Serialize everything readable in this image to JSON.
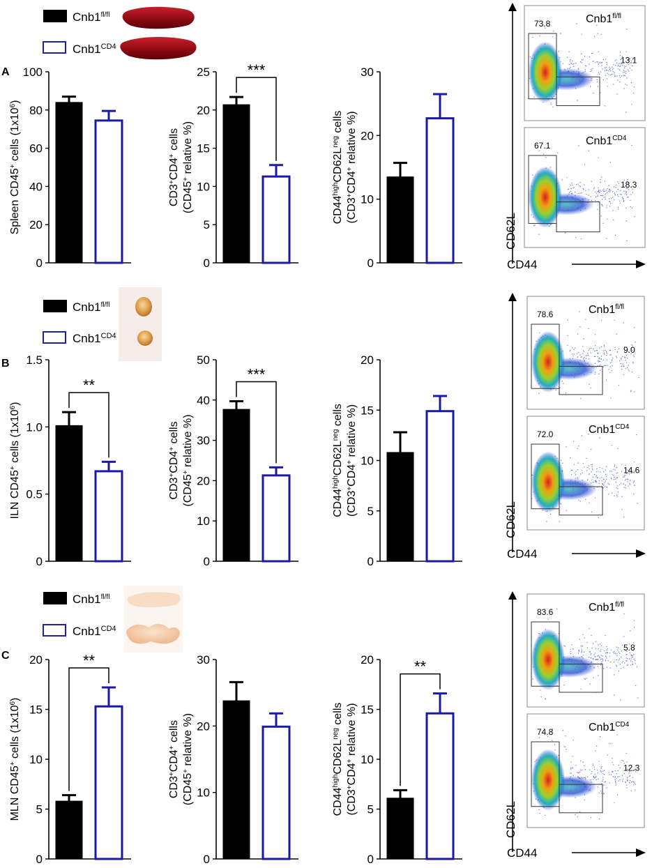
{
  "figure": {
    "legend_fl": "Cnb1",
    "legend_fl_sup": "fl/fl",
    "legend_cd4": "Cnb1",
    "legend_cd4_sup": "CD4",
    "flow_x_axis": "CD44",
    "flow_y_axis": "CD62L",
    "colors": {
      "fl": "#000000",
      "cd4": "#1a1aa6",
      "flow_bg": "#ffffff"
    }
  },
  "panels": [
    {
      "letter": "A",
      "organ": "spleen",
      "flow": [
        {
          "label": "Cnb1",
          "label_sup": "fl/fl",
          "left_gate": "73.8",
          "right_gate": "13.1"
        },
        {
          "label": "Cnb1",
          "label_sup": "CD4",
          "left_gate": "67.1",
          "right_gate": "18.3"
        }
      ]
    },
    {
      "letter": "B",
      "organ": "iln",
      "flow": [
        {
          "label": "Cnb1",
          "label_sup": "fl/fl",
          "left_gate": "78.6",
          "right_gate": "9.0"
        },
        {
          "label": "Cnb1",
          "label_sup": "CD4",
          "left_gate": "72.0",
          "right_gate": "14.6"
        }
      ]
    },
    {
      "letter": "C",
      "organ": "mln",
      "flow": [
        {
          "label": "Cnb1",
          "label_sup": "fl/fl",
          "left_gate": "83.6",
          "right_gate": "5.8"
        },
        {
          "label": "Cnb1",
          "label_sup": "CD4",
          "left_gate": "74.8",
          "right_gate": "12.3"
        }
      ]
    }
  ],
  "chart_data": [
    {
      "type": "bar",
      "panel": "A",
      "title": "",
      "ylabel": "Spleen CD45+ cells (1x10^6)",
      "ylabel_lines": [
        [
          "Spleen CD45",
          {
            "sup": "+"
          },
          " cells (1x10",
          {
            "sup": "6"
          },
          ")"
        ]
      ],
      "categories": [
        "Cnb1fl/fl",
        "Cnb1CD4"
      ],
      "values": [
        84,
        74.5
      ],
      "errors": [
        3,
        5
      ],
      "ylim": [
        0,
        100
      ],
      "yticks": [
        "0",
        "20",
        "40",
        "60",
        "80",
        "100"
      ],
      "significance": ""
    },
    {
      "type": "bar",
      "panel": "A",
      "title": "",
      "ylabel": "CD3+CD4+ cells (CD45+ relative %)",
      "ylabel_lines": [
        [
          "CD3",
          {
            "sup": "+"
          },
          "CD4",
          {
            "sup": "+"
          },
          " cells"
        ],
        [
          "(CD45",
          {
            "sup": "+"
          },
          " relative %)"
        ]
      ],
      "categories": [
        "Cnb1fl/fl",
        "Cnb1CD4"
      ],
      "values": [
        20.7,
        11.3
      ],
      "errors": [
        1,
        1.5
      ],
      "ylim": [
        0,
        25
      ],
      "yticks": [
        "0",
        "5",
        "10",
        "15",
        "20",
        "25"
      ],
      "significance": "***"
    },
    {
      "type": "bar",
      "panel": "A",
      "title": "",
      "ylabel": "CD44highCD62Lneg cells (CD3+CD4+ relative %)",
      "ylabel_lines": [
        [
          "CD44",
          {
            "sup": "high"
          },
          "CD62L",
          {
            "sup": "neg"
          },
          " cells"
        ],
        [
          "(CD3",
          {
            "sup": "+"
          },
          "CD4",
          {
            "sup": "+"
          },
          " relative %)"
        ]
      ],
      "categories": [
        "Cnb1fl/fl",
        "Cnb1CD4"
      ],
      "values": [
        13.5,
        22.7
      ],
      "errors": [
        2.2,
        3.8
      ],
      "ylim": [
        0,
        30
      ],
      "yticks": [
        "0",
        "10",
        "20",
        "30"
      ],
      "significance": ""
    },
    {
      "type": "bar",
      "panel": "B",
      "title": "",
      "ylabel": "ILN CD45+ cells (1x10^6)",
      "ylabel_lines": [
        [
          "ILN CD45",
          {
            "sup": "+"
          },
          " cells (1x10",
          {
            "sup": "6"
          },
          ")"
        ]
      ],
      "categories": [
        "Cnb1fl/fl",
        "Cnb1CD4"
      ],
      "values": [
        1.01,
        0.67
      ],
      "errors": [
        0.1,
        0.07
      ],
      "ylim": [
        0,
        1.5
      ],
      "yticks": [
        "0",
        "0.5",
        "1.0",
        "1.5"
      ],
      "significance": "**"
    },
    {
      "type": "bar",
      "panel": "B",
      "title": "",
      "ylabel": "CD3+CD4+ cells (CD45+ relative %)",
      "ylabel_lines": [
        [
          "CD3",
          {
            "sup": "+"
          },
          "CD4",
          {
            "sup": "+"
          },
          " cells"
        ],
        [
          "(CD45",
          {
            "sup": "+"
          },
          " relative %)"
        ]
      ],
      "categories": [
        "Cnb1fl/fl",
        "Cnb1CD4"
      ],
      "values": [
        37.7,
        21.3
      ],
      "errors": [
        2,
        2
      ],
      "ylim": [
        0,
        50
      ],
      "yticks": [
        "0",
        "10",
        "20",
        "30",
        "40",
        "50"
      ],
      "significance": "***"
    },
    {
      "type": "bar",
      "panel": "B",
      "title": "",
      "ylabel": "CD44highCD62Lneg cells (CD3+CD4+ relative %)",
      "ylabel_lines": [
        [
          "CD44",
          {
            "sup": "high"
          },
          "CD62L",
          {
            "sup": "neg"
          },
          " cells"
        ],
        [
          "(CD3",
          {
            "sup": "+"
          },
          "CD4",
          {
            "sup": "+"
          },
          " relative %)"
        ]
      ],
      "categories": [
        "Cnb1fl/fl",
        "Cnb1CD4"
      ],
      "values": [
        10.8,
        14.9
      ],
      "errors": [
        2,
        1.5
      ],
      "ylim": [
        0,
        20
      ],
      "yticks": [
        "0",
        "5",
        "10",
        "15",
        "20"
      ],
      "significance": ""
    },
    {
      "type": "bar",
      "panel": "C",
      "title": "",
      "ylabel": "MLN CD45+ cells (1x10^6)",
      "ylabel_lines": [
        [
          "MLN CD45",
          {
            "sup": "+"
          },
          " cells (1x10",
          {
            "sup": "6"
          },
          ")"
        ]
      ],
      "categories": [
        "Cnb1fl/fl",
        "Cnb1CD4"
      ],
      "values": [
        5.8,
        15.3
      ],
      "errors": [
        0.6,
        1.9
      ],
      "ylim": [
        0,
        20
      ],
      "yticks": [
        "0",
        "5",
        "10",
        "15",
        "20"
      ],
      "significance": "**"
    },
    {
      "type": "bar",
      "panel": "C",
      "title": "",
      "ylabel": "CD3+CD4+ cells (CD45+ relative %)",
      "ylabel_lines": [
        [
          "CD3",
          {
            "sup": "+"
          },
          "CD4",
          {
            "sup": "+"
          },
          " cells"
        ],
        [
          "(CD45",
          {
            "sup": "+"
          },
          " relative %)"
        ]
      ],
      "categories": [
        "Cnb1fl/fl",
        "Cnb1CD4"
      ],
      "values": [
        23.8,
        19.9
      ],
      "errors": [
        2.8,
        2
      ],
      "ylim": [
        0,
        30
      ],
      "yticks": [
        "0",
        "10",
        "20",
        "30"
      ],
      "significance": ""
    },
    {
      "type": "bar",
      "panel": "C",
      "title": "",
      "ylabel": "CD44highCD62Lneg cells (CD3+CD4+ relative %)",
      "ylabel_lines": [
        [
          "CD44",
          {
            "sup": "high"
          },
          "CD62L",
          {
            "sup": "neg"
          },
          " cells"
        ],
        [
          "(CD3",
          {
            "sup": "+"
          },
          "CD4",
          {
            "sup": "+"
          },
          " relative %)"
        ]
      ],
      "categories": [
        "Cnb1fl/fl",
        "Cnb1CD4"
      ],
      "values": [
        6.1,
        14.6
      ],
      "errors": [
        0.8,
        2
      ],
      "ylim": [
        0,
        20
      ],
      "yticks": [
        "0",
        "5",
        "10",
        "15",
        "20"
      ],
      "significance": "**"
    }
  ]
}
